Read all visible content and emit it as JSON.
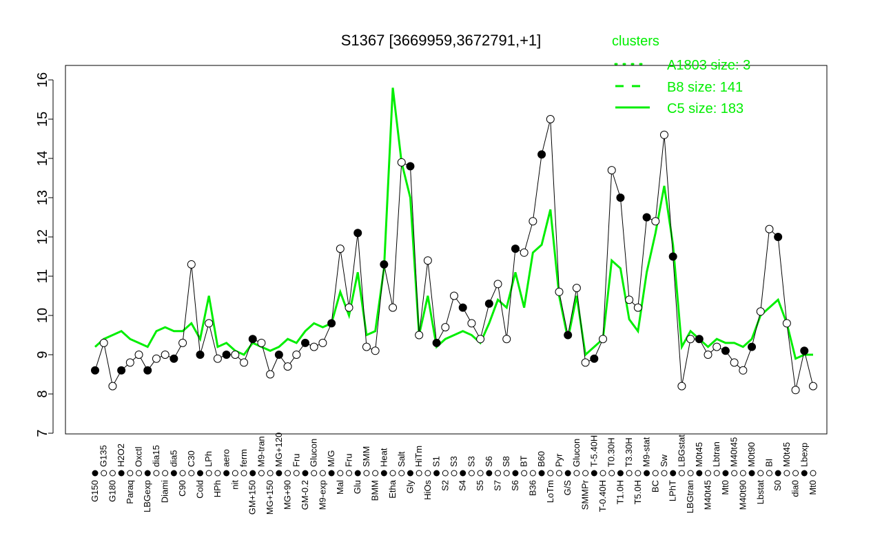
{
  "chart_data": {
    "type": "line",
    "title": "S1367 [3669959,3672791,+1]",
    "xlabel": "",
    "ylabel": "",
    "ylim": [
      7,
      16
    ],
    "yticks": [
      7,
      8,
      9,
      10,
      11,
      12,
      13,
      14,
      15,
      16
    ],
    "legend": {
      "title": "clusters",
      "placement": "top-right",
      "entries": [
        {
          "label": "A1803 size: 3",
          "style": "dotted"
        },
        {
          "label": "B8 size: 141",
          "style": "dashed"
        },
        {
          "label": "C5 size: 183",
          "style": "solid"
        }
      ]
    },
    "colors": {
      "series": "#000000",
      "cluster": "#00ee00"
    },
    "categories": [
      "G150",
      "G135",
      "G180",
      "H2O2",
      "Paraq",
      "Oxctl",
      "LBGexp",
      "dia15",
      "Diami",
      "dia5",
      "C90",
      "C30",
      "Cold",
      "LPh",
      "HPh",
      "aero",
      "nit",
      "ferm",
      "GM+150",
      "M9-tran",
      "MG+150",
      "MG+120",
      "MG+90",
      "Fru",
      "GM-0.2",
      "Glucon",
      "M9-exp",
      "M/G",
      "Mal",
      "Fru",
      "Glu",
      "SMM",
      "BMM",
      "Heat",
      "Etha",
      "Salt",
      "Gly",
      "HiTm",
      "HiOs",
      "S1",
      "S2",
      "S3",
      "S4",
      "S3",
      "S5",
      "S6",
      "S7",
      "S8",
      "S6",
      "BT",
      "B36",
      "B60",
      "LoTm",
      "Pyr",
      "G/S",
      "Glucon",
      "SMMPr",
      "T-5.40H",
      "T-0.40H",
      "T0.30H",
      "T1.0H",
      "T3.30H",
      "T5.0H",
      "M9-stat",
      "BC",
      "Sw",
      "LPhT",
      "LBGstat",
      "LBGtran",
      "M0t45",
      "M40t45",
      "Lbtran",
      "Mt0",
      "M40t45",
      "M40t90",
      "M0t90",
      "Lbstat",
      "BI",
      "S0",
      "M0t45",
      "dia0",
      "Lbexp",
      "Mt0"
    ],
    "series": [
      {
        "name": "S1367",
        "values": [
          8.6,
          9.3,
          8.2,
          8.6,
          8.8,
          9.0,
          8.6,
          8.9,
          9.0,
          8.9,
          9.3,
          11.3,
          9.0,
          9.8,
          8.9,
          9.0,
          9.0,
          8.8,
          9.4,
          9.3,
          8.5,
          9.0,
          8.7,
          9.0,
          9.3,
          9.2,
          9.3,
          9.8,
          11.7,
          10.2,
          12.1,
          9.2,
          9.1,
          11.3,
          10.2,
          13.9,
          13.8,
          9.5,
          11.4,
          9.3,
          9.7,
          10.5,
          10.2,
          9.8,
          9.4,
          10.3,
          10.8,
          9.4,
          11.7,
          11.6,
          12.4,
          14.1,
          15.0,
          10.6,
          9.5,
          10.7,
          8.8,
          8.9,
          9.4,
          13.7,
          13.0,
          10.4,
          10.2,
          12.5,
          12.4,
          14.6,
          11.5,
          8.2,
          9.4,
          9.4,
          9.0,
          9.2,
          9.1,
          8.8,
          8.6,
          9.2,
          10.1,
          12.2,
          12.0,
          9.8,
          8.1,
          9.1,
          8.2
        ]
      },
      {
        "name": "C5 size: 183",
        "values": [
          9.2,
          9.4,
          9.5,
          9.6,
          9.4,
          9.3,
          9.2,
          9.6,
          9.7,
          9.6,
          9.6,
          9.8,
          9.4,
          10.5,
          9.2,
          9.3,
          9.1,
          9.0,
          9.3,
          9.2,
          9.1,
          9.2,
          9.4,
          9.3,
          9.6,
          9.8,
          9.7,
          9.8,
          10.6,
          10.0,
          11.1,
          9.5,
          9.6,
          11.2,
          15.8,
          13.9,
          13.0,
          9.5,
          10.5,
          9.2,
          9.4,
          9.5,
          9.6,
          9.5,
          9.3,
          9.8,
          10.4,
          10.2,
          11.1,
          10.2,
          11.6,
          11.8,
          12.7,
          10.5,
          9.4,
          10.5,
          9.0,
          9.2,
          9.4,
          11.4,
          11.2,
          9.9,
          9.6,
          11.1,
          12.1,
          13.3,
          11.8,
          9.2,
          9.6,
          9.4,
          9.2,
          9.4,
          9.3,
          9.3,
          9.2,
          9.4,
          10.0,
          10.2,
          10.4,
          9.8,
          8.9,
          9.0,
          9.0
        ]
      }
    ]
  }
}
